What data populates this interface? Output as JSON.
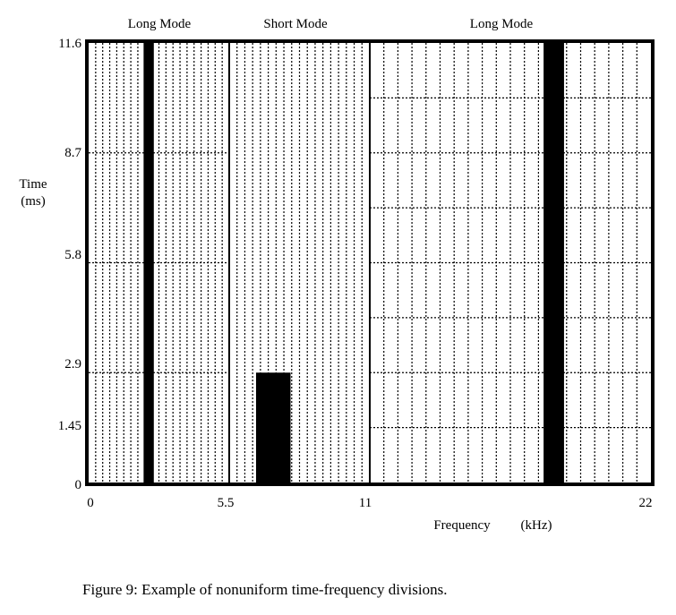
{
  "figure": {
    "caption": "Figure 9:  Example of nonuniform time-frequency divisions."
  },
  "top_labels": {
    "left": "Long Mode",
    "middle": "Short Mode",
    "right": "Long Mode"
  },
  "axes": {
    "y_label_line1": "Time",
    "y_label_line2": "(ms)",
    "x_label_a": "Frequency",
    "x_label_b": "(kHz)",
    "y_ticks": [
      "11.6",
      "8.7",
      "5.8",
      "2.9",
      "1.45",
      "0"
    ],
    "x_ticks": [
      "0",
      "5.5",
      "11",
      "22"
    ]
  },
  "chart_data": {
    "type": "table",
    "xlabel": "Frequency (kHz)",
    "ylabel": "Time (ms)",
    "xlim": [
      0,
      22
    ],
    "ylim": [
      0,
      11.6
    ],
    "x_ticks": [
      0,
      5.5,
      11,
      22
    ],
    "y_ticks": [
      0,
      1.45,
      2.9,
      5.8,
      8.7,
      11.6
    ],
    "regions": [
      {
        "label": "Long Mode",
        "x_range": [
          0,
          5.5
        ]
      },
      {
        "label": "Short Mode",
        "x_range": [
          5.5,
          11
        ]
      },
      {
        "label": "Long Mode",
        "x_range": [
          11,
          22
        ]
      }
    ],
    "highlighted_cells": [
      {
        "x_range": [
          2.15,
          2.55
        ],
        "y_range": [
          0,
          11.6
        ]
      },
      {
        "x_range": [
          6.55,
          7.9
        ],
        "y_range": [
          0,
          2.9
        ]
      },
      {
        "x_range": [
          17.8,
          18.6
        ],
        "y_range": [
          0,
          11.6
        ]
      }
    ]
  }
}
